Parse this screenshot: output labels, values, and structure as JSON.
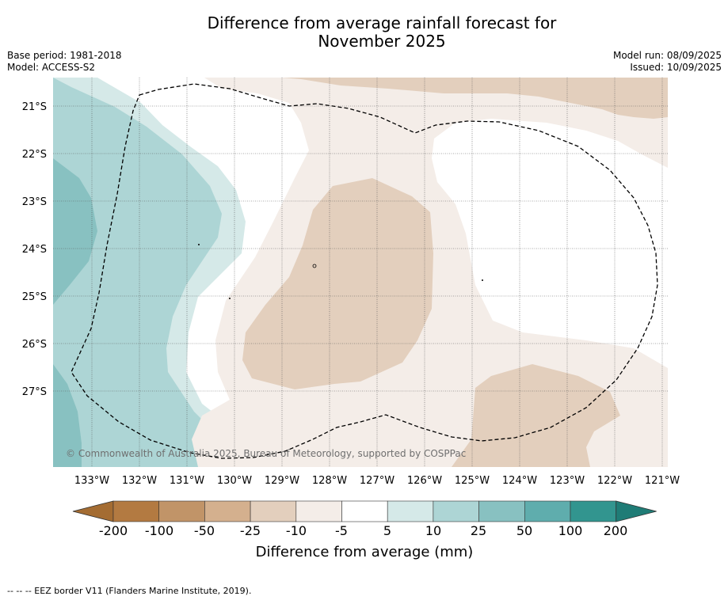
{
  "title_line1": "Difference from average rainfall forecast for",
  "title_line2": "November 2025",
  "base_period": "Base period: 1981-2018",
  "model": "Model: ACCESS-S2",
  "model_run": "Model run: 08/09/2025",
  "issued": "Issued: 10/09/2025",
  "watermark": "© Commonwealth of Australia 2025, Bureau of Meteorology, supported by COSPPac",
  "map": {
    "lat_labels": [
      "21°S",
      "22°S",
      "23°S",
      "24°S",
      "25°S",
      "26°S",
      "27°S"
    ],
    "lon_labels": [
      "133°W",
      "132°W",
      "131°W",
      "130°W",
      "129°W",
      "128°W",
      "127°W",
      "126°W",
      "125°W",
      "124°W",
      "123°W",
      "122°W",
      "121°W"
    ]
  },
  "colorbar": {
    "title": "Difference from average (mm)",
    "tick_labels": [
      "-200",
      "-100",
      "-50",
      "-25",
      "-10",
      "-5",
      "5",
      "10",
      "25",
      "50",
      "100",
      "200"
    ],
    "colors": [
      "#a46c32",
      "#b37a41",
      "#c19468",
      "#d4b08e",
      "#e3cfbd",
      "#f4ede8",
      "#ffffff",
      "#d5e9e8",
      "#add5d5",
      "#88c1c1",
      "#5fadad",
      "#32958f",
      "#1f7c76"
    ]
  },
  "footer": "--  --  -- EEZ border V11 (Flanders Marine Institute, 2019)."
}
